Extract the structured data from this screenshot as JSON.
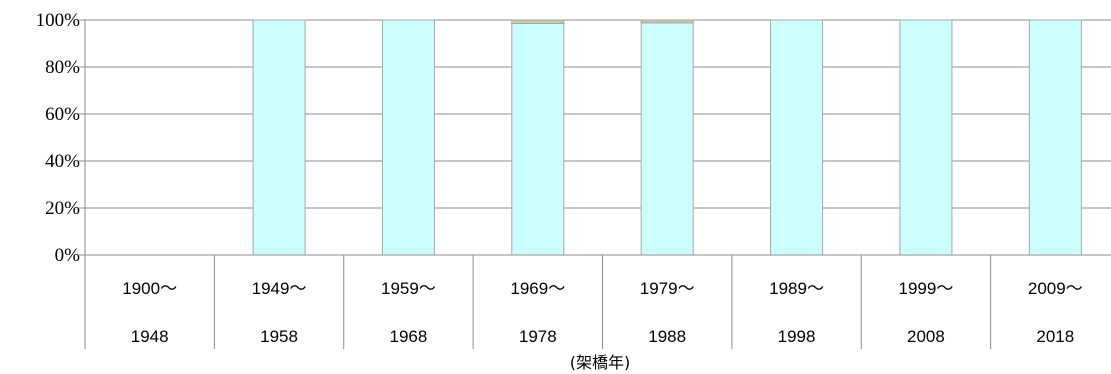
{
  "chart_data": {
    "type": "bar",
    "stacked": true,
    "categories": [
      [
        "1900〜",
        "1948"
      ],
      [
        "1949〜",
        "1958"
      ],
      [
        "1959〜",
        "1968"
      ],
      [
        "1969〜",
        "1978"
      ],
      [
        "1979〜",
        "1988"
      ],
      [
        "1989〜",
        "1998"
      ],
      [
        "1999〜",
        "2008"
      ],
      [
        "2009〜",
        "2018"
      ]
    ],
    "series": [
      {
        "color": "#ccffff",
        "values": [
          0,
          100,
          100,
          98.5,
          98.8,
          100,
          100,
          100
        ]
      },
      {
        "color": "#c8c8a8",
        "values": [
          0,
          0,
          0,
          1.5,
          1.2,
          0,
          0,
          0
        ]
      }
    ],
    "yticks": [
      "0%",
      "20%",
      "40%",
      "60%",
      "80%",
      "100%"
    ],
    "ylim": [
      0,
      100
    ],
    "xlabel": "(架橋年)",
    "grid": true,
    "legend": "none"
  }
}
